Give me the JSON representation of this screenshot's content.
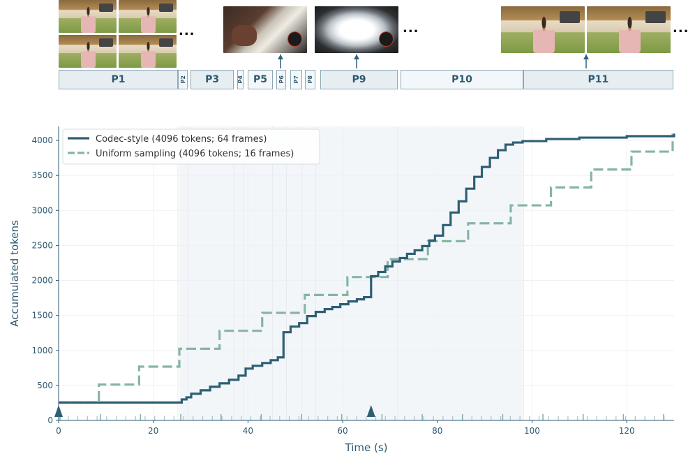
{
  "segments": [
    {
      "label": "P1",
      "start": 0.0,
      "end": 25.2,
      "shade": "dark"
    },
    {
      "label": "P2",
      "start": 25.2,
      "end": 27.3,
      "shade": "light"
    },
    {
      "label": "P3",
      "start": 27.9,
      "end": 37.0,
      "shade": "dark"
    },
    {
      "label": "P4",
      "start": 37.7,
      "end": 39.0,
      "shade": "light"
    },
    {
      "label": "P5",
      "start": 40.0,
      "end": 45.2,
      "shade": "light"
    },
    {
      "label": "P6",
      "start": 46.0,
      "end": 48.1,
      "shade": "light"
    },
    {
      "label": "P7",
      "start": 49.0,
      "end": 51.4,
      "shade": "light"
    },
    {
      "label": "P8",
      "start": 52.0,
      "end": 54.3,
      "shade": "light"
    },
    {
      "label": "P9",
      "start": 55.3,
      "end": 71.6,
      "shade": "dark"
    },
    {
      "label": "P10",
      "start": 72.2,
      "end": 98.2,
      "shade": "light"
    },
    {
      "label": "P11",
      "start": 98.2,
      "end": 129.8,
      "shade": "dark"
    }
  ],
  "thumbnails": [
    {
      "kind": "kitchen",
      "group": "P1"
    },
    {
      "kind": "pour",
      "group": "P6"
    },
    {
      "kind": "pot",
      "group": "P9"
    },
    {
      "kind": "kitchen",
      "group": "P11"
    }
  ],
  "ellipsis": "...",
  "chart_data": {
    "type": "line",
    "xlabel": "Time (s)",
    "ylabel": "Accumulated tokens",
    "xlim": [
      0,
      130
    ],
    "ylim": [
      0,
      4200
    ],
    "xticks": [
      0,
      20,
      40,
      60,
      80,
      100,
      120
    ],
    "yticks": [
      0,
      500,
      1000,
      1500,
      2000,
      2500,
      3000,
      3500,
      4000
    ],
    "grid": true,
    "legend": "top-left",
    "shaded_region": [
      25.5,
      98
    ],
    "markers_x": [
      0,
      66
    ],
    "colors": {
      "codec": "#2d5f74",
      "uniform": "#86b4a6",
      "axis": "#2d5a70"
    },
    "series": [
      {
        "name": "Codec-style (4096 tokens; 64 frames)",
        "style": "solid",
        "points": [
          [
            0,
            256
          ],
          [
            26,
            300
          ],
          [
            27,
            330
          ],
          [
            28,
            380
          ],
          [
            30,
            430
          ],
          [
            32,
            480
          ],
          [
            34,
            530
          ],
          [
            36,
            580
          ],
          [
            38,
            640
          ],
          [
            39.5,
            740
          ],
          [
            41,
            780
          ],
          [
            43,
            820
          ],
          [
            44.8,
            860
          ],
          [
            46.3,
            900
          ],
          [
            47.5,
            1260
          ],
          [
            49,
            1340
          ],
          [
            50.8,
            1390
          ],
          [
            52.5,
            1490
          ],
          [
            54.3,
            1550
          ],
          [
            56.2,
            1590
          ],
          [
            57.8,
            1620
          ],
          [
            59.5,
            1660
          ],
          [
            61.2,
            1700
          ],
          [
            63,
            1730
          ],
          [
            64.5,
            1760
          ],
          [
            66,
            2060
          ],
          [
            67.5,
            2120
          ],
          [
            69,
            2200
          ],
          [
            70.5,
            2270
          ],
          [
            72.1,
            2320
          ],
          [
            73.6,
            2380
          ],
          [
            75.2,
            2430
          ],
          [
            76.8,
            2490
          ],
          [
            78.3,
            2570
          ],
          [
            79.5,
            2640
          ],
          [
            81.2,
            2790
          ],
          [
            82.8,
            2970
          ],
          [
            84.5,
            3130
          ],
          [
            86.1,
            3310
          ],
          [
            87.8,
            3480
          ],
          [
            89.4,
            3620
          ],
          [
            91.1,
            3750
          ],
          [
            92.8,
            3860
          ],
          [
            94.4,
            3940
          ],
          [
            96,
            3970
          ],
          [
            98,
            3990
          ],
          [
            103,
            4020
          ],
          [
            110,
            4040
          ],
          [
            120,
            4060
          ],
          [
            130,
            4096
          ]
        ]
      },
      {
        "name": "Uniform sampling (4096 tokens; 16 frames)",
        "style": "dashed",
        "points": [
          [
            0,
            256
          ],
          [
            8.5,
            512
          ],
          [
            17,
            768
          ],
          [
            25.5,
            1024
          ],
          [
            34,
            1280
          ],
          [
            43,
            1536
          ],
          [
            52,
            1792
          ],
          [
            61,
            2048
          ],
          [
            69.5,
            2304
          ],
          [
            78,
            2560
          ],
          [
            86.5,
            2816
          ],
          [
            95.5,
            3072
          ],
          [
            104,
            3328
          ],
          [
            112.5,
            3584
          ],
          [
            121,
            3840
          ],
          [
            129.7,
            4096
          ]
        ]
      }
    ]
  }
}
